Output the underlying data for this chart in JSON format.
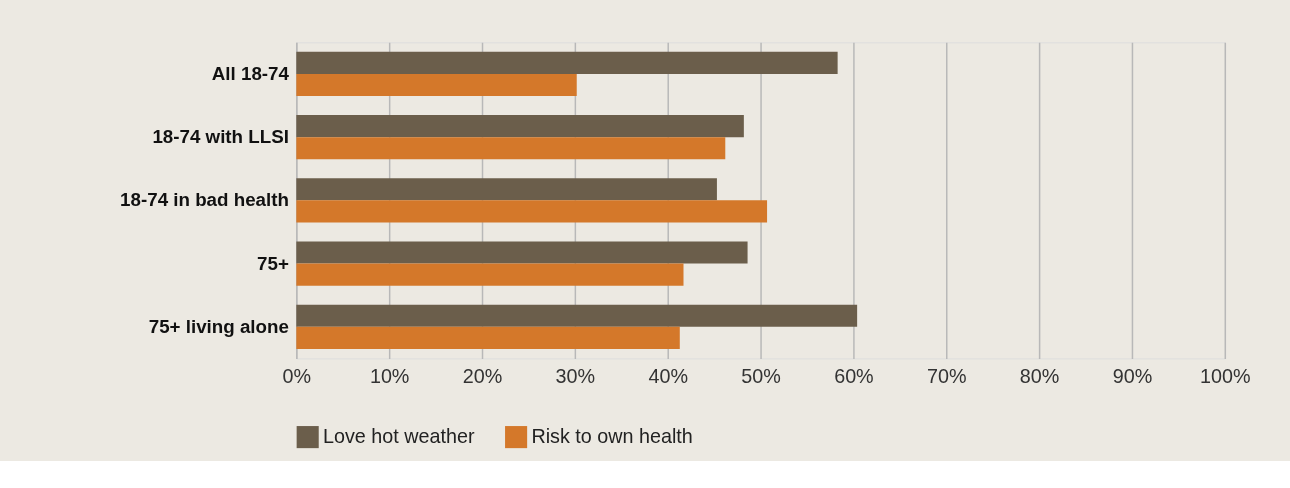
{
  "chart_data": {
    "type": "bar",
    "orientation": "horizontal",
    "categories": [
      "All 18-74",
      "18-74 with LLSI",
      "18-74 in bad health",
      "75+",
      "75+ living alone"
    ],
    "series": [
      {
        "name": "Love hot weather",
        "color": "#6b5e4b",
        "values": [
          58.3,
          48.2,
          45.3,
          48.6,
          60.4
        ]
      },
      {
        "name": "Risk to own health",
        "color": "#d4782a",
        "values": [
          30.2,
          46.2,
          50.7,
          41.7,
          41.3
        ]
      }
    ],
    "xlim": [
      0,
      100
    ],
    "xticks": [
      {
        "value": 0,
        "label": "0%"
      },
      {
        "value": 10,
        "label": "10%"
      },
      {
        "value": 20,
        "label": "20%"
      },
      {
        "value": 30,
        "label": "30%"
      },
      {
        "value": 40,
        "label": "40%"
      },
      {
        "value": 50,
        "label": "50%"
      },
      {
        "value": 60,
        "label": "60%"
      },
      {
        "value": 70,
        "label": "70%"
      },
      {
        "value": 80,
        "label": "80%"
      },
      {
        "value": 90,
        "label": "90%"
      },
      {
        "value": 100,
        "label": "100%"
      }
    ],
    "grid": "x",
    "legend": "bottom left"
  }
}
